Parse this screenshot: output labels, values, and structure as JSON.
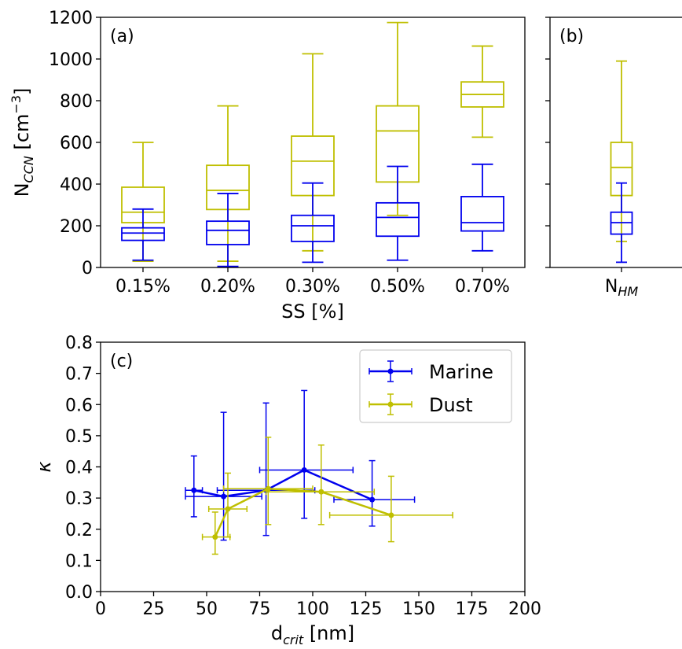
{
  "colors": {
    "marine": "#0000ee",
    "dust": "#bfbf00"
  },
  "chart_data": [
    {
      "type": "box",
      "panel_label": "(a)",
      "xlabel": "SS [%]",
      "ylabel": {
        "main": "N",
        "sub": "CCN",
        "rest": " [cm",
        "sup": "−3",
        "close": "]"
      },
      "ylim": [
        0,
        1200
      ],
      "yticks": [
        "0",
        "200",
        "400",
        "600",
        "800",
        "1000",
        "1200"
      ],
      "categories": [
        "0.15%",
        "0.20%",
        "0.30%",
        "0.50%",
        "0.70%"
      ],
      "series": [
        {
          "color_key": "dust",
          "boxes": [
            {
              "whislo": 30,
              "q1": 215,
              "median": 265,
              "q3": 385,
              "whishi": 600
            },
            {
              "whislo": 30,
              "q1": 278,
              "median": 370,
              "q3": 490,
              "whishi": 775
            },
            {
              "whislo": 80,
              "q1": 345,
              "median": 510,
              "q3": 630,
              "whishi": 1025
            },
            {
              "whislo": 250,
              "q1": 410,
              "median": 655,
              "q3": 775,
              "whishi": 1175
            },
            {
              "whislo": 625,
              "q1": 770,
              "median": 830,
              "q3": 890,
              "whishi": 1062
            }
          ]
        },
        {
          "color_key": "marine",
          "boxes": [
            {
              "whislo": 35,
              "q1": 130,
              "median": 165,
              "q3": 190,
              "whishi": 280
            },
            {
              "whislo": 5,
              "q1": 110,
              "median": 178,
              "q3": 222,
              "whishi": 355
            },
            {
              "whislo": 25,
              "q1": 125,
              "median": 200,
              "q3": 250,
              "whishi": 405
            },
            {
              "whislo": 35,
              "q1": 150,
              "median": 240,
              "q3": 310,
              "whishi": 485
            },
            {
              "whislo": 80,
              "q1": 175,
              "median": 215,
              "q3": 340,
              "whishi": 495
            }
          ]
        }
      ]
    },
    {
      "type": "box",
      "panel_label": "(b)",
      "xlabel": "",
      "ylim": [
        0,
        1200
      ],
      "categories": [
        {
          "main": "N",
          "sub": "HM"
        }
      ],
      "series": [
        {
          "color_key": "dust",
          "boxes": [
            {
              "whislo": 125,
              "q1": 345,
              "median": 480,
              "q3": 600,
              "whishi": 990
            }
          ]
        },
        {
          "color_key": "marine",
          "boxes": [
            {
              "whislo": 25,
              "q1": 160,
              "median": 215,
              "q3": 265,
              "whishi": 405
            }
          ]
        }
      ]
    },
    {
      "type": "scatter",
      "panel_label": "(c)",
      "xlabel": {
        "main": "d",
        "sub": "crit",
        "rest": " [nm]"
      },
      "ylabel": "κ",
      "xlim": [
        0,
        200
      ],
      "ylim": [
        0.0,
        0.8
      ],
      "xticks": [
        "0",
        "25",
        "50",
        "75",
        "100",
        "125",
        "150",
        "175",
        "200"
      ],
      "yticks": [
        "0.0",
        "0.1",
        "0.2",
        "0.3",
        "0.4",
        "0.5",
        "0.6",
        "0.7",
        "0.8"
      ],
      "legend_position": "top-right",
      "series": [
        {
          "name": "Marine",
          "color_key": "marine",
          "points": [
            {
              "x": 44,
              "y": 0.325,
              "xerr": [
                40,
                48
              ],
              "yerr": [
                0.24,
                0.435
              ]
            },
            {
              "x": 58,
              "y": 0.305,
              "xerr": [
                40,
                76
              ],
              "yerr": [
                0.165,
                0.575
              ]
            },
            {
              "x": 78,
              "y": 0.325,
              "xerr": [
                55,
                101
              ],
              "yerr": [
                0.18,
                0.605
              ]
            },
            {
              "x": 96,
              "y": 0.39,
              "xerr": [
                75,
                119
              ],
              "yerr": [
                0.235,
                0.645
              ]
            },
            {
              "x": 128,
              "y": 0.295,
              "xerr": [
                110,
                148
              ],
              "yerr": [
                0.21,
                0.42
              ]
            }
          ]
        },
        {
          "name": "Dust",
          "color_key": "dust",
          "points": [
            {
              "x": 54,
              "y": 0.175,
              "xerr": [
                48,
                61
              ],
              "yerr": [
                0.12,
                0.255
              ]
            },
            {
              "x": 60,
              "y": 0.265,
              "xerr": [
                51,
                69
              ],
              "yerr": [
                0.175,
                0.38
              ]
            },
            {
              "x": 79,
              "y": 0.33,
              "xerr": [
                58,
                100
              ],
              "yerr": [
                0.215,
                0.495
              ]
            },
            {
              "x": 104,
              "y": 0.32,
              "xerr": [
                78,
                129
              ],
              "yerr": [
                0.215,
                0.47
              ]
            },
            {
              "x": 137,
              "y": 0.245,
              "xerr": [
                108,
                166
              ],
              "yerr": [
                0.16,
                0.37
              ]
            }
          ]
        }
      ]
    }
  ]
}
